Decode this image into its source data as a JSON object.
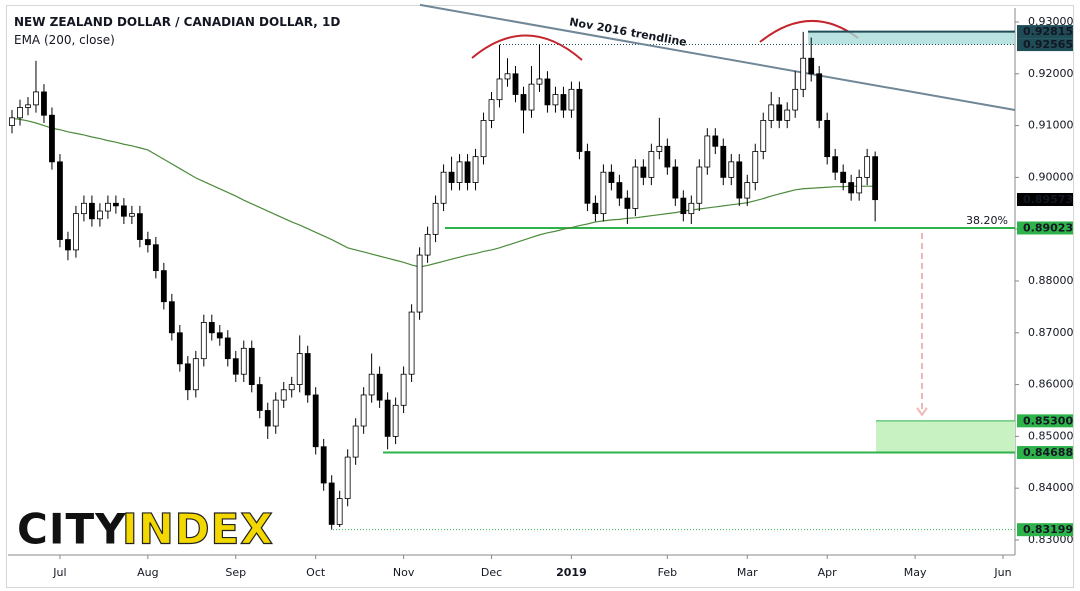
{
  "chart_data": {
    "type": "candlestick",
    "title": "NEW ZEALAND DOLLAR / CANADIAN DOLLAR, 1D",
    "subtitle": "EMA (200, close)",
    "categories": [
      null,
      null,
      null,
      null,
      null,
      null,
      "Jul",
      null,
      null,
      null,
      null,
      null,
      null,
      null,
      null,
      null,
      null,
      "Aug",
      null,
      null,
      null,
      null,
      null,
      null,
      null,
      null,
      null,
      null,
      "Sep",
      null,
      null,
      null,
      null,
      null,
      null,
      null,
      null,
      null,
      "Oct",
      null,
      null,
      null,
      null,
      null,
      null,
      null,
      null,
      null,
      null,
      "Nov",
      null,
      null,
      null,
      null,
      null,
      null,
      null,
      null,
      null,
      null,
      "Dec",
      null,
      null,
      null,
      null,
      null,
      null,
      null,
      null,
      null,
      "2019",
      null,
      null,
      null,
      null,
      null,
      null,
      null,
      null,
      null,
      null,
      null,
      "Feb",
      null,
      null,
      null,
      null,
      null,
      null,
      null,
      null,
      null,
      "Mar",
      null,
      null,
      null,
      null,
      null,
      null,
      null,
      null,
      null,
      "Apr",
      null,
      null,
      null,
      null,
      null,
      null,
      null,
      null,
      null,
      null,
      "May",
      null,
      null,
      null,
      null,
      null,
      null,
      null,
      null,
      null,
      null,
      "Jun",
      null
    ],
    "ohlc": [
      [
        0.91,
        0.913,
        0.9085,
        0.9115
      ],
      [
        0.9115,
        0.915,
        0.91,
        0.9135
      ],
      [
        0.9135,
        0.9155,
        0.912,
        0.914
      ],
      [
        0.914,
        0.9225,
        0.9125,
        0.9165
      ],
      [
        0.9165,
        0.918,
        0.9105,
        0.912
      ],
      [
        0.912,
        0.9135,
        0.9015,
        0.903
      ],
      [
        0.903,
        0.9045,
        0.8865,
        0.888
      ],
      [
        0.888,
        0.8895,
        0.884,
        0.886
      ],
      [
        0.886,
        0.8945,
        0.8845,
        0.893
      ],
      [
        0.893,
        0.8965,
        0.8915,
        0.895
      ],
      [
        0.895,
        0.8965,
        0.8905,
        0.892
      ],
      [
        0.892,
        0.895,
        0.8905,
        0.8935
      ],
      [
        0.8935,
        0.8965,
        0.892,
        0.895
      ],
      [
        0.895,
        0.8965,
        0.893,
        0.8945
      ],
      [
        0.8945,
        0.896,
        0.891,
        0.8925
      ],
      [
        0.8925,
        0.8945,
        0.891,
        0.893
      ],
      [
        0.893,
        0.8945,
        0.8865,
        0.888
      ],
      [
        0.888,
        0.8895,
        0.8855,
        0.887
      ],
      [
        0.887,
        0.8885,
        0.8805,
        0.882
      ],
      [
        0.882,
        0.8835,
        0.8745,
        0.876
      ],
      [
        0.876,
        0.8775,
        0.8685,
        0.87
      ],
      [
        0.87,
        0.8715,
        0.8625,
        0.864
      ],
      [
        0.864,
        0.8655,
        0.857,
        0.859
      ],
      [
        0.859,
        0.8665,
        0.8575,
        0.865
      ],
      [
        0.865,
        0.8735,
        0.8635,
        0.872
      ],
      [
        0.872,
        0.8735,
        0.8685,
        0.87
      ],
      [
        0.87,
        0.8715,
        0.8675,
        0.869
      ],
      [
        0.869,
        0.8705,
        0.8635,
        0.865
      ],
      [
        0.865,
        0.8665,
        0.8605,
        0.862
      ],
      [
        0.862,
        0.8685,
        0.8605,
        0.867
      ],
      [
        0.867,
        0.8685,
        0.8585,
        0.86
      ],
      [
        0.86,
        0.8615,
        0.8535,
        0.855
      ],
      [
        0.855,
        0.8565,
        0.8495,
        0.852
      ],
      [
        0.852,
        0.8585,
        0.8505,
        0.857
      ],
      [
        0.857,
        0.8605,
        0.8555,
        0.859
      ],
      [
        0.859,
        0.8615,
        0.8575,
        0.86
      ],
      [
        0.86,
        0.8695,
        0.8585,
        0.866
      ],
      [
        0.866,
        0.8675,
        0.8565,
        0.858
      ],
      [
        0.858,
        0.8595,
        0.8465,
        0.848
      ],
      [
        0.848,
        0.8495,
        0.8395,
        0.841
      ],
      [
        0.841,
        0.8425,
        0.832,
        0.833
      ],
      [
        0.833,
        0.8395,
        0.8325,
        0.838
      ],
      [
        0.838,
        0.8475,
        0.8365,
        0.846
      ],
      [
        0.846,
        0.8535,
        0.8445,
        0.852
      ],
      [
        0.852,
        0.8595,
        0.8505,
        0.858
      ],
      [
        0.858,
        0.866,
        0.8565,
        0.862
      ],
      [
        0.862,
        0.8635,
        0.8555,
        0.857
      ],
      [
        0.857,
        0.8585,
        0.8475,
        0.85
      ],
      [
        0.85,
        0.8575,
        0.8485,
        0.856
      ],
      [
        0.856,
        0.8635,
        0.8545,
        0.862
      ],
      [
        0.862,
        0.8755,
        0.8605,
        0.874
      ],
      [
        0.874,
        0.8865,
        0.8725,
        0.885
      ],
      [
        0.885,
        0.8905,
        0.8835,
        0.889
      ],
      [
        0.889,
        0.8965,
        0.8875,
        0.895
      ],
      [
        0.895,
        0.9025,
        0.8935,
        0.901
      ],
      [
        0.901,
        0.904,
        0.8975,
        0.899
      ],
      [
        0.899,
        0.9045,
        0.8975,
        0.903
      ],
      [
        0.903,
        0.9045,
        0.8975,
        0.899
      ],
      [
        0.899,
        0.9055,
        0.8975,
        0.904
      ],
      [
        0.904,
        0.9125,
        0.9025,
        0.911
      ],
      [
        0.911,
        0.9165,
        0.9095,
        0.915
      ],
      [
        0.915,
        0.9256,
        0.9135,
        0.919
      ],
      [
        0.919,
        0.923,
        0.9175,
        0.92
      ],
      [
        0.92,
        0.9215,
        0.9145,
        0.916
      ],
      [
        0.916,
        0.9175,
        0.9085,
        0.913
      ],
      [
        0.913,
        0.9215,
        0.9115,
        0.918
      ],
      [
        0.918,
        0.9256,
        0.9165,
        0.919
      ],
      [
        0.919,
        0.9205,
        0.9125,
        0.914
      ],
      [
        0.914,
        0.9175,
        0.9125,
        0.916
      ],
      [
        0.916,
        0.9175,
        0.9115,
        0.913
      ],
      [
        0.913,
        0.9185,
        0.9115,
        0.917
      ],
      [
        0.917,
        0.9185,
        0.9035,
        0.905
      ],
      [
        0.905,
        0.9065,
        0.8935,
        0.895
      ],
      [
        0.895,
        0.8965,
        0.8915,
        0.893
      ],
      [
        0.893,
        0.9025,
        0.8915,
        0.901
      ],
      [
        0.901,
        0.9025,
        0.8975,
        0.899
      ],
      [
        0.899,
        0.9005,
        0.8945,
        0.896
      ],
      [
        0.896,
        0.8975,
        0.891,
        0.894
      ],
      [
        0.894,
        0.9035,
        0.8925,
        0.902
      ],
      [
        0.902,
        0.9035,
        0.8985,
        0.9
      ],
      [
        0.9,
        0.9065,
        0.8985,
        0.905
      ],
      [
        0.905,
        0.9115,
        0.9035,
        0.906
      ],
      [
        0.906,
        0.9075,
        0.9005,
        0.902
      ],
      [
        0.902,
        0.9035,
        0.8945,
        0.896
      ],
      [
        0.896,
        0.8975,
        0.8915,
        0.893
      ],
      [
        0.893,
        0.8965,
        0.891,
        0.895
      ],
      [
        0.895,
        0.9035,
        0.8935,
        0.902
      ],
      [
        0.902,
        0.9095,
        0.9005,
        0.908
      ],
      [
        0.908,
        0.9095,
        0.9045,
        0.906
      ],
      [
        0.906,
        0.9075,
        0.8985,
        0.9
      ],
      [
        0.9,
        0.9045,
        0.8985,
        0.903
      ],
      [
        0.903,
        0.9045,
        0.8945,
        0.896
      ],
      [
        0.896,
        0.9005,
        0.8945,
        0.899
      ],
      [
        0.899,
        0.9065,
        0.8975,
        0.905
      ],
      [
        0.905,
        0.9125,
        0.9035,
        0.911
      ],
      [
        0.911,
        0.9165,
        0.9095,
        0.914
      ],
      [
        0.914,
        0.9155,
        0.9095,
        0.911
      ],
      [
        0.911,
        0.9145,
        0.9095,
        0.913
      ],
      [
        0.913,
        0.9205,
        0.9115,
        0.917
      ],
      [
        0.917,
        0.9281,
        0.9155,
        0.923
      ],
      [
        0.923,
        0.927,
        0.9185,
        0.92
      ],
      [
        0.92,
        0.9215,
        0.9095,
        0.911
      ],
      [
        0.911,
        0.9125,
        0.9025,
        0.904
      ],
      [
        0.904,
        0.9055,
        0.8995,
        0.901
      ],
      [
        0.901,
        0.9025,
        0.8975,
        0.899
      ],
      [
        0.899,
        0.9005,
        0.8955,
        0.897
      ],
      [
        0.897,
        0.9015,
        0.8955,
        0.9
      ],
      [
        0.9,
        0.9055,
        0.8985,
        0.904
      ],
      [
        0.904,
        0.905,
        0.8915,
        0.8957
      ],
      null,
      null,
      null,
      null,
      null,
      null,
      null,
      null,
      null,
      null,
      null,
      null,
      null,
      null,
      null,
      null,
      null
    ],
    "up_color": "#ffffff",
    "down_color": "#000000",
    "ema": {
      "color": "#4d8b3c",
      "values": [
        0.9114,
        0.9112,
        0.9109,
        0.9105,
        0.91,
        0.9095,
        0.9092,
        0.9088,
        0.9085,
        0.9082,
        0.9078,
        0.9075,
        0.9071,
        0.9068,
        0.9064,
        0.9061,
        0.9057,
        0.9053,
        0.9044,
        0.9035,
        0.9026,
        0.9017,
        0.9008,
        0.8999,
        0.8992,
        0.8985,
        0.8978,
        0.8971,
        0.8964,
        0.8956,
        0.8949,
        0.8942,
        0.8935,
        0.8928,
        0.8921,
        0.8914,
        0.8908,
        0.8901,
        0.8894,
        0.8887,
        0.888,
        0.8872,
        0.8864,
        0.886,
        0.8856,
        0.8852,
        0.8848,
        0.8844,
        0.884,
        0.8836,
        0.8831,
        0.8827,
        0.883,
        0.8834,
        0.8838,
        0.8842,
        0.8846,
        0.885,
        0.8853,
        0.8857,
        0.886,
        0.8864,
        0.8869,
        0.8874,
        0.8879,
        0.8884,
        0.8889,
        0.8893,
        0.8896,
        0.89,
        0.8903,
        0.8907,
        0.891,
        0.8914,
        0.8916,
        0.8918,
        0.8919,
        0.8921,
        0.8922,
        0.8924,
        0.8926,
        0.8928,
        0.893,
        0.8932,
        0.8935,
        0.8937,
        0.8939,
        0.8941,
        0.8943,
        0.8945,
        0.8947,
        0.8949,
        0.8951,
        0.8955,
        0.8959,
        0.8964,
        0.8968,
        0.8972,
        0.8976,
        0.8978,
        0.8979,
        0.898,
        0.8981,
        0.8982,
        0.8982,
        0.8983,
        0.8983,
        0.8983,
        0.8983,
        null,
        null,
        null,
        null,
        null,
        null,
        null,
        null,
        null,
        null,
        null,
        null,
        null,
        null,
        null,
        null,
        null
      ]
    },
    "ylim": [
      0.8271,
      0.9327
    ],
    "yticks": [
      {
        "value": 0.83,
        "label": "0.83000"
      },
      {
        "value": 0.84,
        "label": "0.84000"
      },
      {
        "value": 0.85,
        "label": "0.85000"
      },
      {
        "value": 0.86,
        "label": "0.86000"
      },
      {
        "value": 0.87,
        "label": "0.87000"
      },
      {
        "value": 0.88,
        "label": "0.88000"
      },
      {
        "value": 0.89,
        "label": "0.89000"
      },
      {
        "value": 0.9,
        "label": "0.90000"
      },
      {
        "value": 0.91,
        "label": "0.91000"
      },
      {
        "value": 0.92,
        "label": "0.92000"
      },
      {
        "value": 0.93,
        "label": "0.93000"
      }
    ],
    "price_labels": [
      {
        "value": 0.92815,
        "label": "0.92815",
        "color": "#1f4d57"
      },
      {
        "value": 0.92565,
        "label": "0.92565",
        "color": "#1f4d57"
      },
      {
        "value": 0.89573,
        "label": "0.89573",
        "color": "#000000"
      },
      {
        "value": 0.89023,
        "label": "0.89023",
        "color": "#2eb34b"
      },
      {
        "value": 0.853,
        "label": "0.85300",
        "color": "#2eb34b"
      },
      {
        "value": 0.84688,
        "label": "0.84688",
        "color": "#2eb34b"
      },
      {
        "value": 0.83199,
        "label": "0.83199",
        "color": "#2eb34b"
      }
    ],
    "trendline": {
      "label": "Nov 2016 trendline",
      "color": "#6f8797",
      "values": [
        0.9333,
        0.913
      ]
    },
    "fib_label": "38.20%",
    "logo": [
      "CITY",
      "INDEX"
    ]
  }
}
